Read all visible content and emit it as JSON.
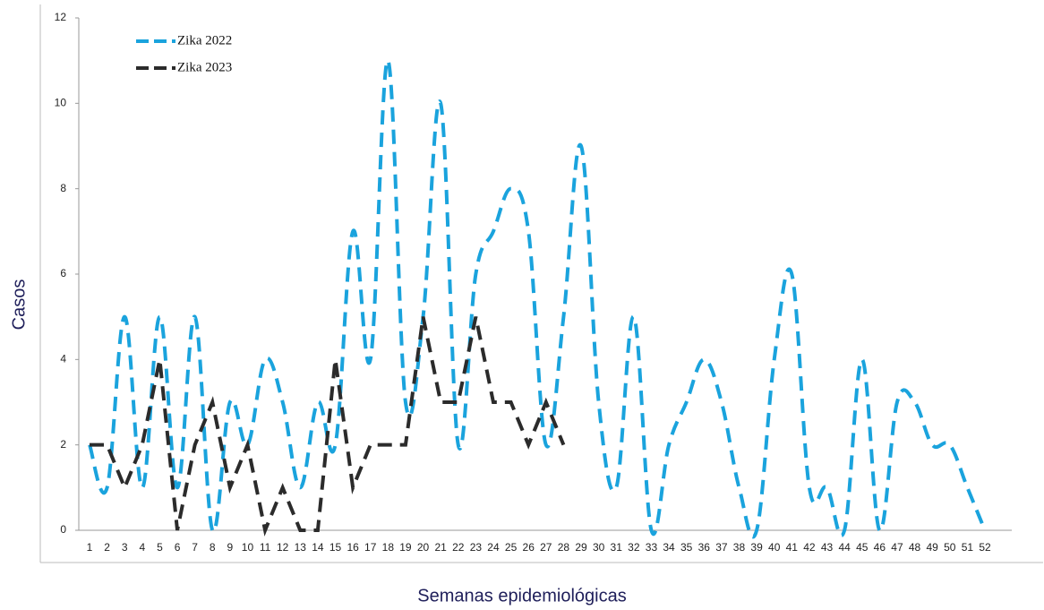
{
  "chart_data": {
    "type": "line",
    "xlabel": "Semanas epidemiológicas",
    "ylabel": "Casos",
    "categories": [
      "1",
      "2",
      "3",
      "4",
      "5",
      "6",
      "7",
      "8",
      "9",
      "10",
      "11",
      "12",
      "13",
      "14",
      "15",
      "16",
      "17",
      "18",
      "19",
      "20",
      "21",
      "22",
      "23",
      "24",
      "25",
      "26",
      "27",
      "28",
      "29",
      "30",
      "31",
      "32",
      "33",
      "34",
      "35",
      "36",
      "37",
      "38",
      "39",
      "40",
      "41",
      "42",
      "43",
      "44",
      "45",
      "46",
      "47",
      "48",
      "49",
      "50",
      "51",
      "52"
    ],
    "series": [
      {
        "name": "Zika 2022",
        "color": "#1aa3dd",
        "smooth": true,
        "values": [
          2,
          1,
          5,
          1,
          5,
          1,
          5,
          0,
          3,
          2,
          4,
          3,
          1,
          3,
          2,
          7,
          4,
          11,
          3,
          5,
          10,
          2,
          6,
          7,
          8,
          7,
          2,
          5,
          9,
          3,
          1,
          5,
          0,
          2,
          3,
          4,
          3,
          1,
          0,
          4,
          6,
          1,
          1,
          0,
          4,
          0,
          3,
          3,
          2,
          2,
          1,
          0
        ]
      },
      {
        "name": "Zika 2023",
        "color": "#2b2b2b",
        "smooth": false,
        "values": [
          2,
          2,
          1,
          2,
          4,
          0,
          2,
          3,
          1,
          2,
          0,
          1,
          0,
          0,
          4,
          1,
          2,
          2,
          2,
          5,
          3,
          3,
          5,
          3,
          3,
          2,
          3,
          2,
          null,
          null,
          null,
          null,
          null,
          null,
          null,
          null,
          null,
          null,
          null,
          null,
          null,
          null,
          null,
          null,
          null,
          null,
          null,
          null,
          null,
          null,
          null,
          null
        ]
      }
    ],
    "ylim": [
      0,
      12
    ],
    "yticks": [
      0,
      2,
      4,
      6,
      8,
      10,
      12
    ],
    "legend": "upper left"
  }
}
